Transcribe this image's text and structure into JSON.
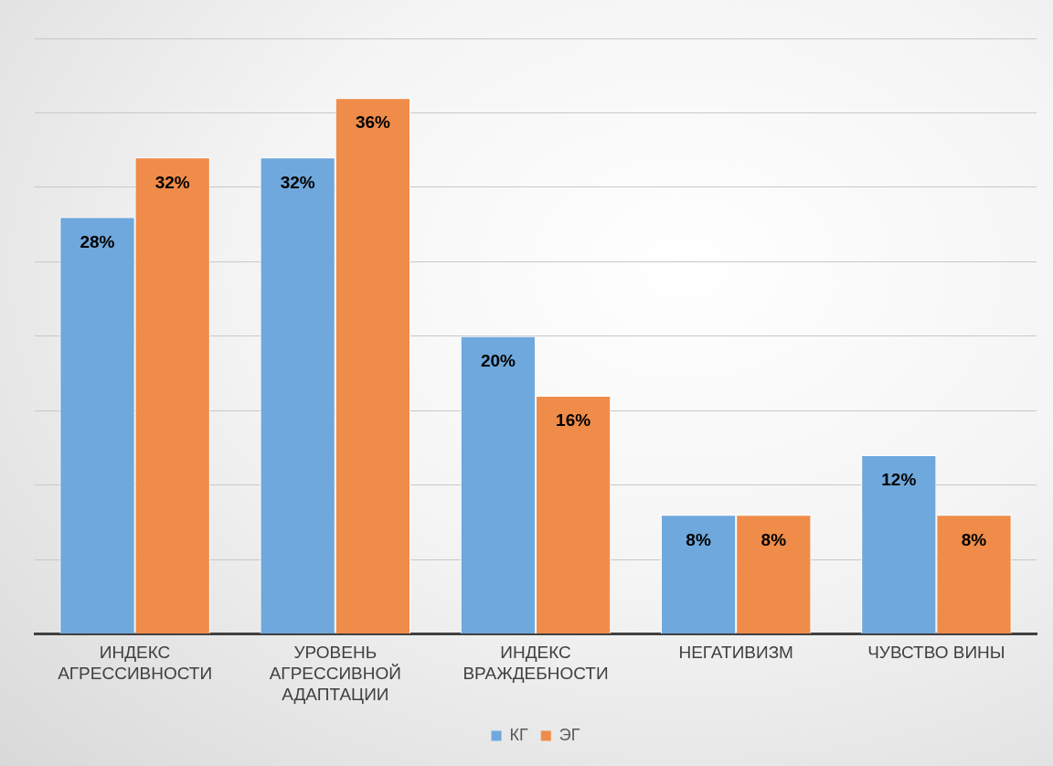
{
  "chart_data": {
    "type": "bar",
    "categories": [
      "ИНДЕКС АГРЕССИВНОСТИ",
      "УРОВЕНЬ АГРЕССИВНОЙ АДАПТАЦИИ",
      "ИНДЕКС ВРАЖДЕБНОСТИ",
      "НЕГАТИВИЗМ",
      "ЧУВСТВО ВИНЫ"
    ],
    "series": [
      {
        "name": "КГ",
        "color": "#6fa8dc",
        "values": [
          28,
          32,
          20,
          8,
          12
        ],
        "value_labels": [
          "28%",
          "32%",
          "20%",
          "8%",
          "12%"
        ]
      },
      {
        "name": "ЭГ",
        "color": "#ef8c4a",
        "values": [
          32,
          36,
          16,
          8,
          8
        ],
        "value_labels": [
          "32%",
          "36%",
          "16%",
          "8%",
          "8%"
        ]
      }
    ],
    "ylim": [
      0,
      40
    ],
    "yticks": [
      {
        "value": 0,
        "label": null
      },
      {
        "value": 5,
        "label": null
      },
      {
        "value": 10,
        "label": null
      },
      {
        "value": 15,
        "label": null
      },
      {
        "value": 20,
        "label": null
      },
      {
        "value": 25,
        "label": null
      },
      {
        "value": 30,
        "label": null
      },
      {
        "value": 35,
        "label": null
      },
      {
        "value": 40,
        "label": null
      }
    ],
    "tick_labels": "x",
    "grid": "y",
    "legend": "bottom"
  }
}
